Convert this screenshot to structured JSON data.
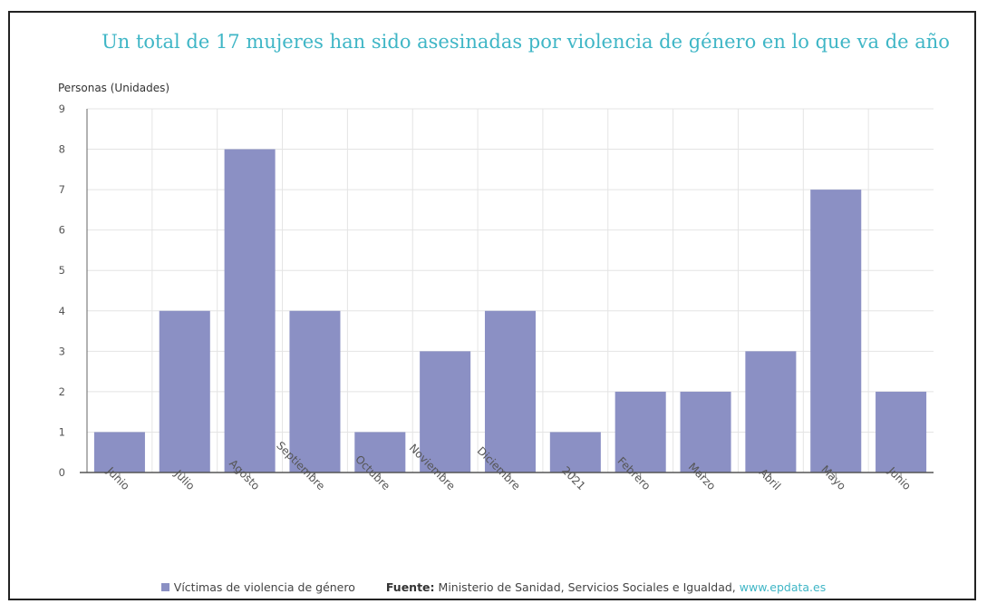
{
  "title": "Un total de 17 mujeres han sido asesinadas por violencia de género en lo que va de año",
  "footer": {
    "legend_label": "Víctimas de violencia de género",
    "source_label": "Fuente:",
    "source_text": "Ministerio de Sanidad, Servicios Sociales e Igualdad,",
    "source_link": "www.epdata.es"
  },
  "colors": {
    "bar": "#8b90c4",
    "title": "#3fb6c6",
    "link": "#3fb6c6",
    "grid": "#e4e4e4"
  },
  "chart_data": {
    "type": "bar",
    "ylabel": "Personas (Unidades)",
    "categories": [
      "Junio",
      "Julio",
      "Agosto",
      "Septiembre",
      "Octubre",
      "Noviembre",
      "Diciembre",
      "2021",
      "Febrero",
      "Marzo",
      "Abril",
      "Mayo",
      "Junio"
    ],
    "series": [
      {
        "name": "Víctimas de violencia de género",
        "values": [
          1,
          4,
          8,
          4,
          1,
          3,
          4,
          1,
          2,
          2,
          3,
          7,
          2
        ]
      }
    ],
    "ylim": [
      0,
      9
    ],
    "yticks": [
      0,
      1,
      2,
      3,
      4,
      5,
      6,
      7,
      8,
      9
    ],
    "grid": true,
    "legend": "bottom-left"
  }
}
